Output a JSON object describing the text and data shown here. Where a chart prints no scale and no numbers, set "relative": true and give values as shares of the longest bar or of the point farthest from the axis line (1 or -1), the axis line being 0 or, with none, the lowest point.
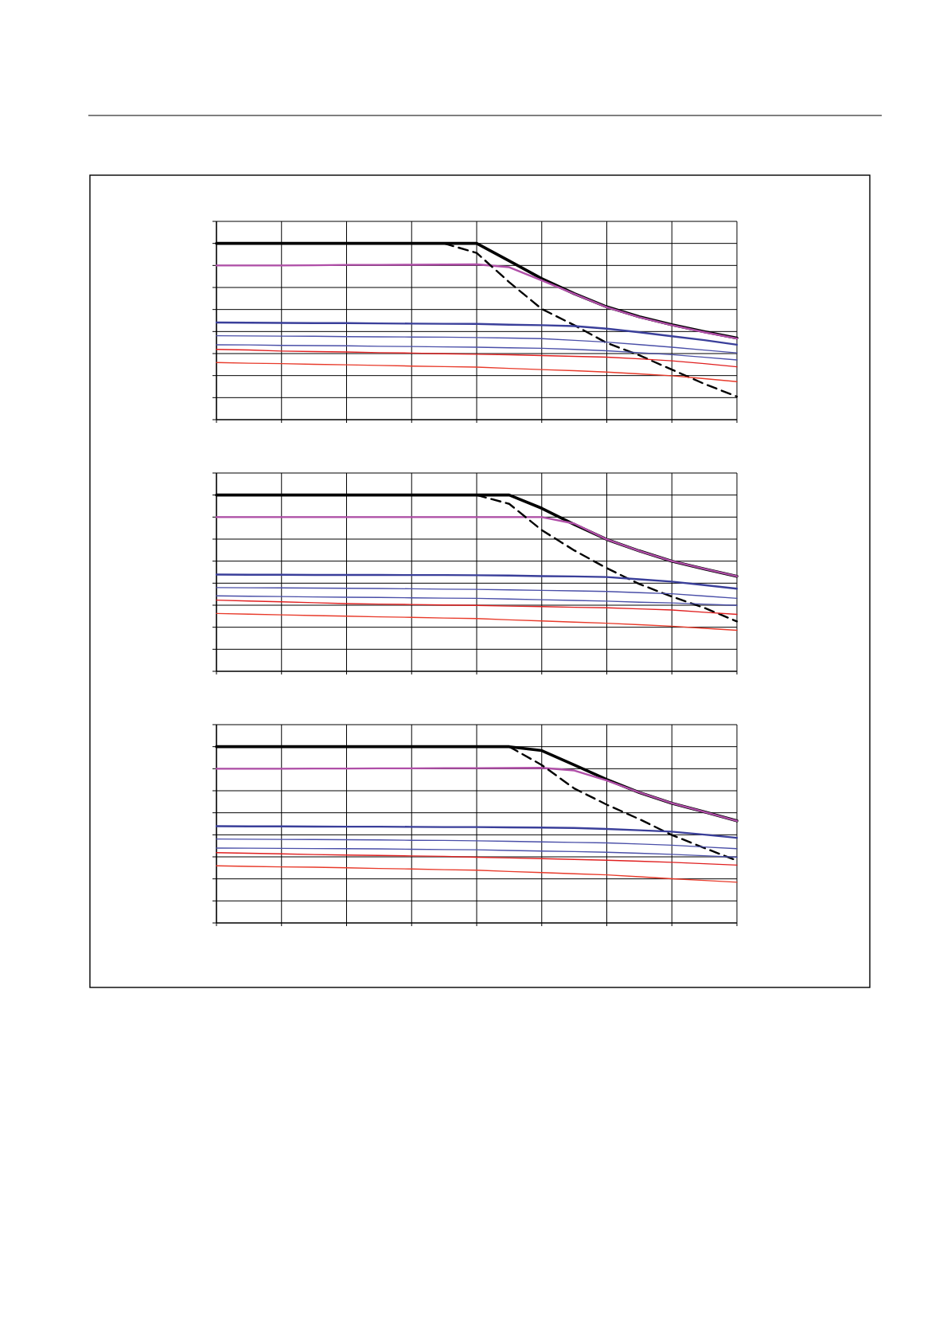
{
  "chart_data": [
    {
      "type": "line",
      "relative": true,
      "grid": true,
      "marker": "none",
      "categories": [
        null,
        null,
        null,
        null,
        null,
        null,
        null,
        null,
        null,
        null,
        null,
        null,
        null,
        null,
        null,
        null,
        null
      ],
      "series": [
        {
          "color": "#000000",
          "values": [
            1,
            1,
            1,
            1,
            1,
            1,
            1,
            1,
            1,
            0.901,
            0.8,
            0.715,
            0.64,
            0.584,
            0.539,
            0.499,
            0.463
          ]
        },
        {
          "color": "#b04fa8",
          "values": [
            0.875,
            0.875,
            0.875,
            0.876,
            0.878,
            0.878,
            0.879,
            0.88,
            0.881,
            0.865,
            0.79,
            0.713,
            0.638,
            0.581,
            0.536,
            0.496,
            0.46
          ]
        },
        {
          "color": "#000000",
          "line_style": "dashed",
          "values": [
            null,
            null,
            null,
            null,
            null,
            null,
            null,
            1,
            0.946,
            0.78,
            0.628,
            0.536,
            0.435,
            0.365,
            0.284,
            0.203,
            0.131
          ]
        },
        {
          "color": "#3a3f9a",
          "values": [
            0.551,
            0.55,
            0.549,
            0.548,
            0.548,
            0.546,
            0.545,
            0.544,
            0.543,
            0.539,
            0.536,
            0.531,
            0.516,
            0.496,
            0.473,
            0.451,
            0.425
          ]
        },
        {
          "color": "#4a4fa8",
          "values": [
            0.476,
            0.475,
            0.474,
            0.473,
            0.471,
            0.47,
            0.469,
            0.468,
            0.466,
            0.463,
            0.46,
            0.45,
            0.44,
            0.426,
            0.411,
            0.395,
            0.379
          ]
        },
        {
          "color": "#4a4fa8",
          "values": [
            0.425,
            0.424,
            0.421,
            0.42,
            0.419,
            0.416,
            0.415,
            0.413,
            0.411,
            0.408,
            0.405,
            0.399,
            0.391,
            0.38,
            0.369,
            0.354,
            0.339
          ]
        },
        {
          "color": "#e02020",
          "values": [
            0.399,
            0.395,
            0.389,
            0.386,
            0.384,
            0.38,
            0.378,
            0.374,
            0.371,
            0.368,
            0.364,
            0.359,
            0.355,
            0.345,
            0.334,
            0.318,
            0.3
          ]
        },
        {
          "color": "#e83a2a",
          "values": [
            0.324,
            0.32,
            0.318,
            0.314,
            0.311,
            0.308,
            0.304,
            0.301,
            0.298,
            0.291,
            0.284,
            0.278,
            0.27,
            0.26,
            0.249,
            0.233,
            0.216
          ]
        }
      ]
    },
    {
      "type": "line",
      "relative": true,
      "grid": true,
      "marker": "none",
      "categories": [
        null,
        null,
        null,
        null,
        null,
        null,
        null,
        null,
        null,
        null,
        null,
        null,
        null,
        null,
        null,
        null,
        null
      ],
      "series": [
        {
          "color": "#000000",
          "values": [
            1,
            1,
            1,
            1,
            1,
            1,
            1,
            1,
            1,
            1,
            0.925,
            0.833,
            0.748,
            0.683,
            0.625,
            0.581,
            0.539
          ]
        },
        {
          "color": "#b04fa8",
          "values": [
            0.875,
            0.875,
            0.875,
            0.875,
            0.875,
            0.875,
            0.875,
            0.875,
            0.875,
            0.875,
            0.875,
            0.838,
            0.748,
            0.683,
            0.625,
            0.581,
            0.539
          ]
        },
        {
          "color": "#000000",
          "line_style": "dashed",
          "values": [
            null,
            null,
            null,
            null,
            null,
            null,
            null,
            null,
            1,
            0.95,
            0.801,
            0.686,
            0.585,
            0.495,
            0.424,
            0.36,
            0.283
          ]
        },
        {
          "color": "#3a3f9a",
          "values": [
            0.549,
            0.548,
            0.548,
            0.547,
            0.547,
            0.547,
            0.546,
            0.546,
            0.545,
            0.543,
            0.54,
            0.538,
            0.535,
            0.522,
            0.509,
            0.489,
            0.469
          ]
        },
        {
          "color": "#4a4fa8",
          "values": [
            0.475,
            0.474,
            0.473,
            0.472,
            0.471,
            0.47,
            0.468,
            0.466,
            0.465,
            0.462,
            0.459,
            0.456,
            0.453,
            0.446,
            0.44,
            0.427,
            0.414
          ]
        },
        {
          "color": "#4a4fa8",
          "values": [
            0.428,
            0.426,
            0.424,
            0.422,
            0.42,
            0.419,
            0.417,
            0.415,
            0.414,
            0.41,
            0.406,
            0.402,
            0.398,
            0.392,
            0.388,
            0.381,
            0.374
          ]
        },
        {
          "color": "#e02020",
          "values": [
            0.404,
            0.399,
            0.394,
            0.389,
            0.384,
            0.381,
            0.379,
            0.376,
            0.374,
            0.37,
            0.367,
            0.363,
            0.36,
            0.354,
            0.348,
            0.335,
            0.323
          ]
        },
        {
          "color": "#e83a2a",
          "values": [
            0.328,
            0.324,
            0.32,
            0.316,
            0.313,
            0.309,
            0.306,
            0.302,
            0.299,
            0.292,
            0.286,
            0.279,
            0.273,
            0.264,
            0.256,
            0.244,
            0.233
          ]
        }
      ]
    },
    {
      "type": "line",
      "relative": true,
      "grid": true,
      "marker": "none",
      "categories": [
        null,
        null,
        null,
        null,
        null,
        null,
        null,
        null,
        null,
        null,
        null,
        null,
        null,
        null,
        null,
        null,
        null
      ],
      "series": [
        {
          "color": "#000000",
          "values": [
            1,
            1,
            1,
            1,
            1,
            1,
            1,
            1,
            1,
            1,
            0.978,
            0.896,
            0.814,
            0.74,
            0.679,
            0.63,
            0.579
          ]
        },
        {
          "color": "#b04fa8",
          "values": [
            0.875,
            0.875,
            0.875,
            0.876,
            0.876,
            0.877,
            0.877,
            0.878,
            0.878,
            0.879,
            0.88,
            0.865,
            0.808,
            0.74,
            0.679,
            0.63,
            0.579
          ]
        },
        {
          "color": "#000000",
          "line_style": "dashed",
          "values": [
            null,
            null,
            null,
            null,
            null,
            null,
            null,
            null,
            null,
            1,
            0.896,
            0.763,
            0.671,
            0.589,
            0.499,
            0.425,
            0.354
          ]
        },
        {
          "color": "#3a3f9a",
          "values": [
            0.549,
            0.548,
            0.548,
            0.547,
            0.546,
            0.546,
            0.545,
            0.544,
            0.544,
            0.542,
            0.541,
            0.539,
            0.533,
            0.526,
            0.518,
            0.501,
            0.483
          ]
        },
        {
          "color": "#4a4fa8",
          "values": [
            0.476,
            0.475,
            0.474,
            0.473,
            0.472,
            0.471,
            0.469,
            0.468,
            0.466,
            0.463,
            0.46,
            0.457,
            0.454,
            0.448,
            0.441,
            0.431,
            0.421
          ]
        },
        {
          "color": "#4a4fa8",
          "values": [
            0.425,
            0.424,
            0.423,
            0.422,
            0.421,
            0.42,
            0.418,
            0.416,
            0.415,
            0.411,
            0.408,
            0.405,
            0.401,
            0.395,
            0.389,
            0.381,
            0.373
          ]
        },
        {
          "color": "#e02020",
          "values": [
            0.399,
            0.395,
            0.392,
            0.388,
            0.385,
            0.383,
            0.38,
            0.378,
            0.373,
            0.369,
            0.365,
            0.36,
            0.356,
            0.35,
            0.344,
            0.336,
            0.328
          ]
        },
        {
          "color": "#e83a2a",
          "values": [
            0.324,
            0.321,
            0.318,
            0.316,
            0.313,
            0.309,
            0.306,
            0.302,
            0.299,
            0.292,
            0.286,
            0.279,
            0.273,
            0.262,
            0.251,
            0.241,
            0.231
          ]
        }
      ]
    }
  ]
}
